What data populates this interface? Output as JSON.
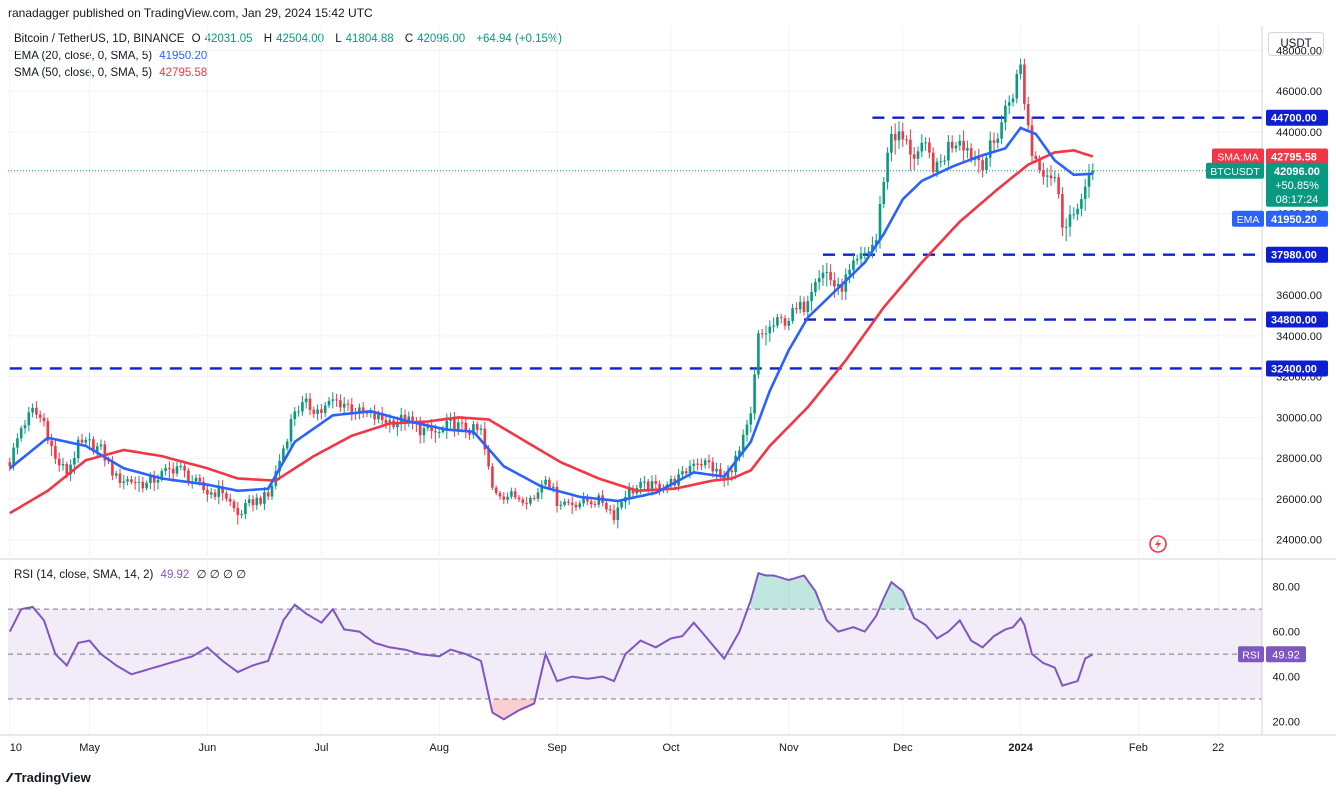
{
  "publisher_line": "ranadagger published on TradingView.com, Jan 29, 2024 15:42 UTC",
  "legend": {
    "symbol": "Bitcoin / TetherUS, 1D, BINANCE",
    "o_label": "O",
    "o": "42031.05",
    "h_label": "H",
    "h": "42504.00",
    "l_label": "L",
    "l": "41804.88",
    "c_label": "C",
    "c": "42096.00",
    "change": "+64.94 (+0.15%)",
    "ema_label": "EMA (20, close, 0, SMA, 5)",
    "ema_value": "41950.20",
    "sma_label": "SMA (50, close, 0, SMA, 5)",
    "sma_value": "42795.58",
    "rsi_label": "RSI (14, close, SMA, 14, 2)",
    "rsi_value": "49.92",
    "rsi_extra": "∅ ∅ ∅ ∅"
  },
  "currency": "USDT",
  "footer": "TradingView",
  "colors": {
    "up": "#089981",
    "down": "#f23645",
    "ema": "#2962ff",
    "sma": "#f23645",
    "rsi": "#7e57c2",
    "level": "#0d1fd1",
    "rsi_band": "#ede7f6"
  },
  "icons": {
    "flash": "flash-icon",
    "logo": "tradingview-logo-icon"
  },
  "chart_data": {
    "type": "line",
    "title": "Bitcoin / TetherUS, 1D, BINANCE",
    "ylim": [
      23200,
      49200
    ],
    "price_ticks": [
      24000,
      26000,
      28000,
      30000,
      32000,
      34000,
      36000,
      38000,
      40000,
      42000,
      44000,
      46000,
      48000
    ],
    "price_tick_labels": [
      "24000.00",
      "26000.00",
      "28000.00",
      "30000.00",
      "32000.00",
      "34000.00",
      "36000.00",
      "38000.00",
      "40000.00",
      "42000.00",
      "44000.00",
      "46000.00",
      "48000.00"
    ],
    "x_labels": [
      "10",
      "May",
      "Jun",
      "Jul",
      "Aug",
      "Sep",
      "Oct",
      "Nov",
      "Dec",
      "2024",
      "Feb",
      "22"
    ],
    "x_label_idx": [
      0,
      21,
      52,
      82,
      113,
      144,
      174,
      205,
      235,
      266,
      297,
      318
    ],
    "total_bars": 330,
    "horizontal_levels": [
      {
        "value": 44700,
        "label": "44700.00",
        "start_idx": 227
      },
      {
        "value": 37980,
        "label": "37980.00",
        "start_idx": 214
      },
      {
        "value": 34800,
        "label": "34800.00",
        "start_idx": 209
      },
      {
        "value": 32400,
        "label": "32400.00",
        "start_idx": 0
      }
    ],
    "close_series": {
      "start_idx": 0,
      "keyframes": [
        [
          0,
          27800
        ],
        [
          3,
          29500
        ],
        [
          6,
          30300
        ],
        [
          9,
          29800
        ],
        [
          12,
          27900
        ],
        [
          15,
          27300
        ],
        [
          18,
          28600
        ],
        [
          21,
          28700
        ],
        [
          24,
          28400
        ],
        [
          28,
          27000
        ],
        [
          32,
          26900
        ],
        [
          36,
          26700
        ],
        [
          40,
          27200
        ],
        [
          44,
          27600
        ],
        [
          48,
          26900
        ],
        [
          52,
          26300
        ],
        [
          56,
          26400
        ],
        [
          60,
          25200
        ],
        [
          64,
          25900
        ],
        [
          68,
          26100
        ],
        [
          72,
          28500
        ],
        [
          75,
          30400
        ],
        [
          78,
          30600
        ],
        [
          82,
          30300
        ],
        [
          85,
          30800
        ],
        [
          88,
          30700
        ],
        [
          92,
          30200
        ],
        [
          96,
          30000
        ],
        [
          100,
          29800
        ],
        [
          104,
          29900
        ],
        [
          108,
          29400
        ],
        [
          113,
          29200
        ],
        [
          116,
          29700
        ],
        [
          120,
          29400
        ],
        [
          124,
          29300
        ],
        [
          127,
          26500
        ],
        [
          130,
          26200
        ],
        [
          134,
          26100
        ],
        [
          138,
          26000
        ],
        [
          141,
          27200
        ],
        [
          144,
          25900
        ],
        [
          148,
          25800
        ],
        [
          152,
          25900
        ],
        [
          156,
          25900
        ],
        [
          159,
          25200
        ],
        [
          162,
          26300
        ],
        [
          166,
          26600
        ],
        [
          170,
          26600
        ],
        [
          174,
          26800
        ],
        [
          177,
          27100
        ],
        [
          180,
          27900
        ],
        [
          184,
          27700
        ],
        [
          188,
          26900
        ],
        [
          192,
          28300
        ],
        [
          195,
          30000
        ],
        [
          197,
          33900
        ],
        [
          199,
          34200
        ],
        [
          201,
          34500
        ],
        [
          205,
          34900
        ],
        [
          209,
          35500
        ],
        [
          212,
          37000
        ],
        [
          215,
          37100
        ],
        [
          218,
          36200
        ],
        [
          222,
          37300
        ],
        [
          225,
          38000
        ],
        [
          228,
          38700
        ],
        [
          230,
          41800
        ],
        [
          232,
          44000
        ],
        [
          235,
          43600
        ],
        [
          238,
          42900
        ],
        [
          241,
          43100
        ],
        [
          244,
          42100
        ],
        [
          247,
          43300
        ],
        [
          250,
          43800
        ],
        [
          253,
          42900
        ],
        [
          256,
          42600
        ],
        [
          259,
          43400
        ],
        [
          262,
          45100
        ],
        [
          264,
          46000
        ],
        [
          266,
          47200
        ],
        [
          267,
          45600
        ],
        [
          269,
          43000
        ],
        [
          272,
          42200
        ],
        [
          275,
          41800
        ],
        [
          277,
          39600
        ],
        [
          279,
          39900
        ],
        [
          281,
          39800
        ],
        [
          283,
          41700
        ],
        [
          285,
          42096
        ]
      ]
    },
    "ema20": {
      "label": "EMA",
      "value": 41950.2,
      "keyframes": [
        [
          0,
          27500
        ],
        [
          10,
          29000
        ],
        [
          20,
          28600
        ],
        [
          30,
          27500
        ],
        [
          40,
          27000
        ],
        [
          52,
          26700
        ],
        [
          60,
          26400
        ],
        [
          68,
          26500
        ],
        [
          75,
          28800
        ],
        [
          85,
          30100
        ],
        [
          95,
          30300
        ],
        [
          105,
          29800
        ],
        [
          115,
          29400
        ],
        [
          122,
          29300
        ],
        [
          130,
          27600
        ],
        [
          140,
          26600
        ],
        [
          150,
          26100
        ],
        [
          160,
          25900
        ],
        [
          170,
          26300
        ],
        [
          180,
          27300
        ],
        [
          188,
          27100
        ],
        [
          195,
          28800
        ],
        [
          200,
          31300
        ],
        [
          205,
          33300
        ],
        [
          210,
          34900
        ],
        [
          215,
          35800
        ],
        [
          220,
          36700
        ],
        [
          225,
          37600
        ],
        [
          230,
          39000
        ],
        [
          235,
          40700
        ],
        [
          240,
          41600
        ],
        [
          248,
          42300
        ],
        [
          255,
          42800
        ],
        [
          262,
          43200
        ],
        [
          266,
          44200
        ],
        [
          270,
          43900
        ],
        [
          275,
          42600
        ],
        [
          280,
          41900
        ],
        [
          285,
          41950
        ]
      ]
    },
    "sma50": {
      "label": "SMA:MA",
      "value": 42795.58,
      "keyframes": [
        [
          0,
          25300
        ],
        [
          10,
          26400
        ],
        [
          20,
          27900
        ],
        [
          30,
          28400
        ],
        [
          40,
          28100
        ],
        [
          52,
          27500
        ],
        [
          60,
          27000
        ],
        [
          70,
          26900
        ],
        [
          80,
          28100
        ],
        [
          90,
          29100
        ],
        [
          100,
          29700
        ],
        [
          110,
          29800
        ],
        [
          118,
          30000
        ],
        [
          126,
          29900
        ],
        [
          135,
          28900
        ],
        [
          145,
          27800
        ],
        [
          155,
          27000
        ],
        [
          165,
          26400
        ],
        [
          175,
          26500
        ],
        [
          185,
          26900
        ],
        [
          190,
          27000
        ],
        [
          195,
          27400
        ],
        [
          200,
          28600
        ],
        [
          210,
          30500
        ],
        [
          220,
          32800
        ],
        [
          230,
          35400
        ],
        [
          240,
          37600
        ],
        [
          250,
          39600
        ],
        [
          260,
          41200
        ],
        [
          268,
          42400
        ],
        [
          275,
          43000
        ],
        [
          280,
          43100
        ],
        [
          285,
          42796
        ]
      ]
    },
    "rsi": {
      "ylim": [
        14,
        91
      ],
      "ticks": [
        20,
        40,
        60,
        80
      ],
      "tick_labels": [
        "20.00",
        "40.00",
        "60.00",
        "80.00"
      ],
      "band": [
        30,
        70
      ],
      "midline": 50,
      "value": 49.92,
      "keyframes": [
        [
          0,
          60
        ],
        [
          3,
          70
        ],
        [
          6,
          71
        ],
        [
          9,
          65
        ],
        [
          12,
          50
        ],
        [
          15,
          45
        ],
        [
          18,
          55
        ],
        [
          21,
          56
        ],
        [
          24,
          50
        ],
        [
          28,
          45
        ],
        [
          32,
          41
        ],
        [
          36,
          43
        ],
        [
          40,
          45
        ],
        [
          44,
          47
        ],
        [
          48,
          49
        ],
        [
          52,
          53
        ],
        [
          56,
          47
        ],
        [
          60,
          42
        ],
        [
          64,
          45
        ],
        [
          68,
          47
        ],
        [
          72,
          65
        ],
        [
          75,
          72
        ],
        [
          78,
          68
        ],
        [
          82,
          64
        ],
        [
          85,
          70
        ],
        [
          88,
          61
        ],
        [
          92,
          60
        ],
        [
          96,
          55
        ],
        [
          100,
          53
        ],
        [
          104,
          52
        ],
        [
          108,
          50
        ],
        [
          113,
          49
        ],
        [
          116,
          52
        ],
        [
          120,
          50
        ],
        [
          124,
          47
        ],
        [
          127,
          24
        ],
        [
          130,
          21
        ],
        [
          134,
          25
        ],
        [
          138,
          28
        ],
        [
          141,
          50
        ],
        [
          144,
          38
        ],
        [
          148,
          40
        ],
        [
          152,
          39
        ],
        [
          156,
          40
        ],
        [
          159,
          38
        ],
        [
          162,
          50
        ],
        [
          166,
          56
        ],
        [
          170,
          53
        ],
        [
          174,
          57
        ],
        [
          177,
          58
        ],
        [
          180,
          64
        ],
        [
          184,
          56
        ],
        [
          188,
          48
        ],
        [
          192,
          60
        ],
        [
          195,
          74
        ],
        [
          197,
          86
        ],
        [
          199,
          85
        ],
        [
          201,
          85
        ],
        [
          205,
          83
        ],
        [
          209,
          85
        ],
        [
          212,
          78
        ],
        [
          215,
          65
        ],
        [
          218,
          60
        ],
        [
          222,
          62
        ],
        [
          225,
          60
        ],
        [
          228,
          67
        ],
        [
          230,
          75
        ],
        [
          232,
          82
        ],
        [
          235,
          78
        ],
        [
          238,
          66
        ],
        [
          241,
          63
        ],
        [
          244,
          57
        ],
        [
          247,
          60
        ],
        [
          250,
          65
        ],
        [
          253,
          56
        ],
        [
          256,
          53
        ],
        [
          259,
          58
        ],
        [
          262,
          61
        ],
        [
          264,
          62
        ],
        [
          266,
          66
        ],
        [
          267,
          63
        ],
        [
          269,
          50
        ],
        [
          272,
          46
        ],
        [
          275,
          44
        ],
        [
          277,
          36
        ],
        [
          279,
          37
        ],
        [
          281,
          38
        ],
        [
          283,
          48
        ],
        [
          285,
          49.92
        ]
      ]
    },
    "last_labels": {
      "sma_tag": "SMA:MA",
      "sma_price": "42795.58",
      "symbol_tag": "BTCUSDT",
      "symbol_price": "42096.00",
      "symbol_change": "+50.85%",
      "countdown": "08:17:24",
      "ema_tag": "EMA",
      "ema_price": "41950.20",
      "rsi_tag": "RSI",
      "rsi_value": "49.92"
    }
  }
}
